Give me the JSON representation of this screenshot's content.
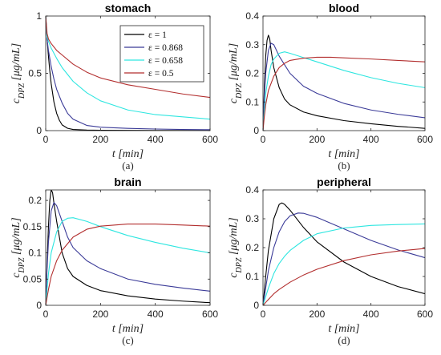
{
  "chart_data": [
    {
      "type": "line",
      "title": "stomach",
      "caption": "(a)",
      "xlabel": "t [min]",
      "ylabel": "c_DPZ [μg/mL]",
      "xlim": [
        0,
        600
      ],
      "ylim": [
        0,
        1
      ],
      "xticks": [
        0,
        200,
        400,
        600
      ],
      "yticks": [
        0,
        0.5,
        1
      ],
      "ytick_labels": [
        "0",
        "0.5",
        "1"
      ],
      "legend": {
        "placement": "top-right"
      },
      "series": [
        {
          "name": "ε = 1",
          "color": "#000000",
          "x": [
            0,
            5,
            10,
            15,
            20,
            30,
            40,
            50,
            60,
            80,
            100,
            150,
            200,
            300,
            400,
            500,
            600
          ],
          "y": [
            1.0,
            0.8,
            0.65,
            0.52,
            0.41,
            0.25,
            0.15,
            0.09,
            0.05,
            0.02,
            0.01,
            0.005,
            0.003,
            0.002,
            0.001,
            0.001,
            0.001
          ]
        },
        {
          "name": "ε = 0.868",
          "color": "#3b3b98",
          "x": [
            0,
            5,
            10,
            20,
            30,
            40,
            60,
            80,
            100,
            150,
            200,
            300,
            400,
            500,
            600
          ],
          "y": [
            1.0,
            0.8,
            0.7,
            0.56,
            0.45,
            0.36,
            0.24,
            0.15,
            0.1,
            0.045,
            0.03,
            0.02,
            0.014,
            0.01,
            0.008
          ]
        },
        {
          "name": "ε = 0.658",
          "color": "#2ee6e0",
          "x": [
            0,
            5,
            10,
            20,
            40,
            60,
            100,
            150,
            200,
            300,
            400,
            500,
            600
          ],
          "y": [
            1.0,
            0.82,
            0.78,
            0.72,
            0.63,
            0.55,
            0.43,
            0.33,
            0.26,
            0.18,
            0.14,
            0.12,
            0.1
          ]
        },
        {
          "name": "ε = 0.5",
          "color": "#b22e2e",
          "x": [
            0,
            5,
            10,
            20,
            40,
            60,
            100,
            150,
            200,
            300,
            400,
            500,
            600
          ],
          "y": [
            1.0,
            0.85,
            0.8,
            0.76,
            0.7,
            0.66,
            0.58,
            0.51,
            0.46,
            0.4,
            0.36,
            0.32,
            0.29
          ]
        }
      ]
    },
    {
      "type": "line",
      "title": "blood",
      "caption": "(b)",
      "xlabel": "t [min]",
      "ylabel": "c_DPZ [μg/mL]",
      "xlim": [
        0,
        600
      ],
      "ylim": [
        0,
        0.4
      ],
      "xticks": [
        0,
        200,
        400,
        600
      ],
      "yticks": [
        0,
        0.1,
        0.2,
        0.3,
        0.4
      ],
      "ytick_labels": [
        "0",
        "0.1",
        "0.2",
        "0.3",
        "0.4"
      ],
      "series": [
        {
          "name": "ε = 1",
          "color": "#000000",
          "x": [
            0,
            5,
            10,
            15,
            20,
            25,
            30,
            40,
            60,
            80,
            100,
            150,
            200,
            300,
            400,
            500,
            600
          ],
          "y": [
            0,
            0.15,
            0.26,
            0.315,
            0.333,
            0.32,
            0.28,
            0.22,
            0.15,
            0.11,
            0.09,
            0.065,
            0.052,
            0.035,
            0.024,
            0.015,
            0.008
          ]
        },
        {
          "name": "ε = 0.868",
          "color": "#3b3b98",
          "x": [
            0,
            5,
            10,
            20,
            30,
            40,
            60,
            80,
            100,
            150,
            200,
            300,
            400,
            500,
            600
          ],
          "y": [
            0,
            0.12,
            0.2,
            0.28,
            0.305,
            0.3,
            0.26,
            0.23,
            0.2,
            0.155,
            0.13,
            0.095,
            0.072,
            0.057,
            0.045
          ]
        },
        {
          "name": "ε = 0.658",
          "color": "#2ee6e0",
          "x": [
            0,
            5,
            10,
            20,
            30,
            40,
            60,
            80,
            100,
            150,
            200,
            300,
            400,
            500,
            600
          ],
          "y": [
            0,
            0.07,
            0.13,
            0.19,
            0.23,
            0.25,
            0.27,
            0.275,
            0.27,
            0.255,
            0.24,
            0.21,
            0.185,
            0.165,
            0.15
          ]
        },
        {
          "name": "ε = 0.5",
          "color": "#b22e2e",
          "x": [
            0,
            5,
            10,
            20,
            40,
            60,
            80,
            100,
            150,
            200,
            250,
            300,
            400,
            500,
            600
          ],
          "y": [
            0,
            0.05,
            0.09,
            0.14,
            0.19,
            0.22,
            0.235,
            0.245,
            0.253,
            0.256,
            0.256,
            0.254,
            0.25,
            0.245,
            0.24
          ]
        }
      ]
    },
    {
      "type": "line",
      "title": "brain",
      "caption": "(c)",
      "xlabel": "t [min]",
      "ylabel": "c_DPZ [μg/mL]",
      "xlim": [
        0,
        600
      ],
      "ylim": [
        0,
        0.22
      ],
      "xticks": [
        0,
        200,
        400,
        600
      ],
      "yticks": [
        0,
        0.05,
        0.1,
        0.15,
        0.2
      ],
      "ytick_labels": [
        "0",
        "0.05",
        "0.1",
        "0.15",
        "0.2"
      ],
      "series": [
        {
          "name": "ε = 1",
          "color": "#000000",
          "x": [
            0,
            5,
            10,
            15,
            20,
            25,
            30,
            40,
            60,
            80,
            100,
            150,
            200,
            300,
            400,
            500,
            600
          ],
          "y": [
            0,
            0.08,
            0.15,
            0.2,
            0.22,
            0.215,
            0.195,
            0.16,
            0.1,
            0.07,
            0.055,
            0.038,
            0.028,
            0.018,
            0.012,
            0.008,
            0.005
          ]
        },
        {
          "name": "ε = 0.868",
          "color": "#3b3b98",
          "x": [
            0,
            5,
            10,
            20,
            30,
            40,
            60,
            80,
            100,
            150,
            200,
            300,
            400,
            500,
            600
          ],
          "y": [
            0,
            0.07,
            0.12,
            0.18,
            0.196,
            0.19,
            0.16,
            0.13,
            0.11,
            0.085,
            0.07,
            0.05,
            0.04,
            0.033,
            0.027
          ]
        },
        {
          "name": "ε = 0.658",
          "color": "#2ee6e0",
          "x": [
            0,
            5,
            10,
            20,
            40,
            60,
            80,
            100,
            150,
            200,
            300,
            400,
            500,
            600
          ],
          "y": [
            0,
            0.03,
            0.06,
            0.1,
            0.14,
            0.16,
            0.166,
            0.167,
            0.16,
            0.15,
            0.133,
            0.12,
            0.109,
            0.1
          ]
        },
        {
          "name": "ε = 0.5",
          "color": "#b22e2e",
          "x": [
            0,
            5,
            10,
            20,
            40,
            60,
            100,
            150,
            200,
            300,
            400,
            500,
            600
          ],
          "y": [
            0,
            0.015,
            0.03,
            0.055,
            0.085,
            0.105,
            0.13,
            0.145,
            0.151,
            0.155,
            0.155,
            0.153,
            0.151
          ]
        }
      ]
    },
    {
      "type": "line",
      "title": "peripheral",
      "caption": "(d)",
      "xlabel": "t [min]",
      "ylabel": "c_DPZ [μg/mL]",
      "xlim": [
        0,
        600
      ],
      "ylim": [
        0,
        0.4
      ],
      "xticks": [
        0,
        200,
        400,
        600
      ],
      "yticks": [
        0,
        0.1,
        0.2,
        0.3,
        0.4
      ],
      "ytick_labels": [
        "0",
        "0.1",
        "0.2",
        "0.3",
        "0.4"
      ],
      "series": [
        {
          "name": "ε = 1",
          "color": "#000000",
          "x": [
            0,
            10,
            20,
            40,
            60,
            70,
            80,
            100,
            150,
            200,
            300,
            400,
            500,
            600
          ],
          "y": [
            0,
            0.1,
            0.19,
            0.3,
            0.35,
            0.355,
            0.35,
            0.33,
            0.27,
            0.22,
            0.15,
            0.1,
            0.065,
            0.04
          ]
        },
        {
          "name": "ε = 0.868",
          "color": "#3b3b98",
          "x": [
            0,
            10,
            20,
            40,
            60,
            80,
            100,
            130,
            150,
            200,
            300,
            400,
            500,
            600
          ],
          "y": [
            0,
            0.06,
            0.12,
            0.2,
            0.255,
            0.29,
            0.31,
            0.32,
            0.319,
            0.305,
            0.265,
            0.225,
            0.192,
            0.165
          ]
        },
        {
          "name": "ε = 0.658",
          "color": "#2ee6e0",
          "x": [
            0,
            10,
            20,
            40,
            60,
            80,
            100,
            150,
            200,
            300,
            400,
            500,
            600
          ],
          "y": [
            0,
            0.03,
            0.06,
            0.11,
            0.145,
            0.17,
            0.19,
            0.225,
            0.248,
            0.268,
            0.277,
            0.28,
            0.282
          ]
        },
        {
          "name": "ε = 0.5",
          "color": "#b22e2e",
          "x": [
            0,
            20,
            40,
            60,
            100,
            150,
            200,
            300,
            400,
            500,
            600
          ],
          "y": [
            0,
            0.02,
            0.04,
            0.055,
            0.08,
            0.105,
            0.125,
            0.155,
            0.175,
            0.188,
            0.197
          ]
        }
      ]
    }
  ]
}
